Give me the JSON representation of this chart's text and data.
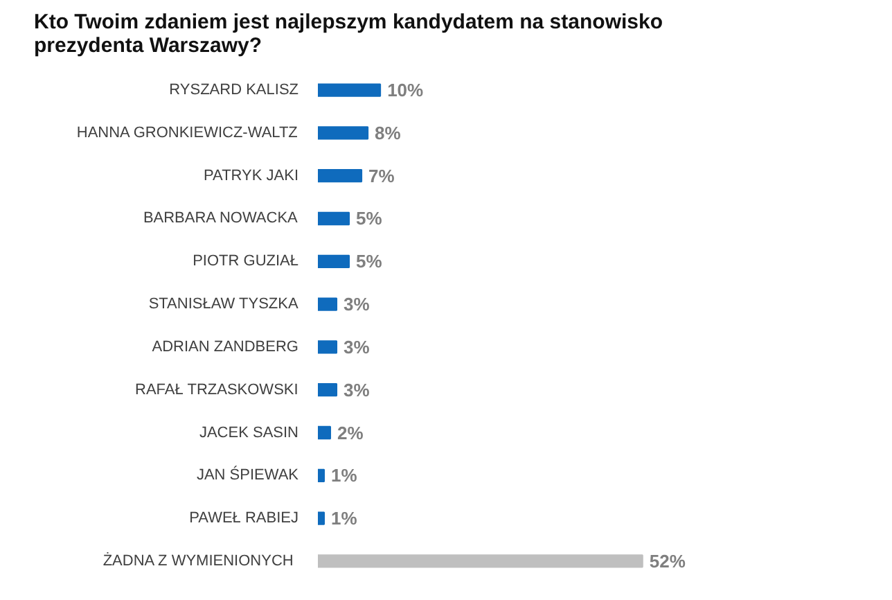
{
  "chart_data": {
    "type": "bar",
    "orientation": "horizontal",
    "title": "Kto Twoim zdaniem jest najlepszym kandydatem na stanowisko prezydenta Warszawy?",
    "categories": [
      "RYSZARD KALISZ",
      "HANNA GRONKIEWICZ-WALTZ",
      "PATRYK JAKI",
      "BARBARA NOWACKA",
      "PIOTR GUZIAŁ",
      "STANISŁAW TYSZKA",
      "ADRIAN ZANDBERG",
      "RAFAŁ TRZASKOWSKI",
      "JACEK SASIN",
      "JAN ŚPIEWAK",
      "PAWEŁ RABIEJ",
      "ŻADNA  Z WYMIENIONYCH"
    ],
    "values": [
      10,
      8,
      7,
      5,
      5,
      3,
      3,
      3,
      2,
      1,
      1,
      52
    ],
    "colors": [
      "#0f6bbd",
      "#0f6bbd",
      "#0f6bbd",
      "#0f6bbd",
      "#0f6bbd",
      "#0f6bbd",
      "#0f6bbd",
      "#0f6bbd",
      "#0f6bbd",
      "#0f6bbd",
      "#0f6bbd",
      "#bfbfbf"
    ],
    "value_labels": [
      "10%",
      "8%",
      "7%",
      "5%",
      "5%",
      "3%",
      "3%",
      "3%",
      "2%",
      "1%",
      "1%",
      "52%"
    ],
    "grid": false
  }
}
